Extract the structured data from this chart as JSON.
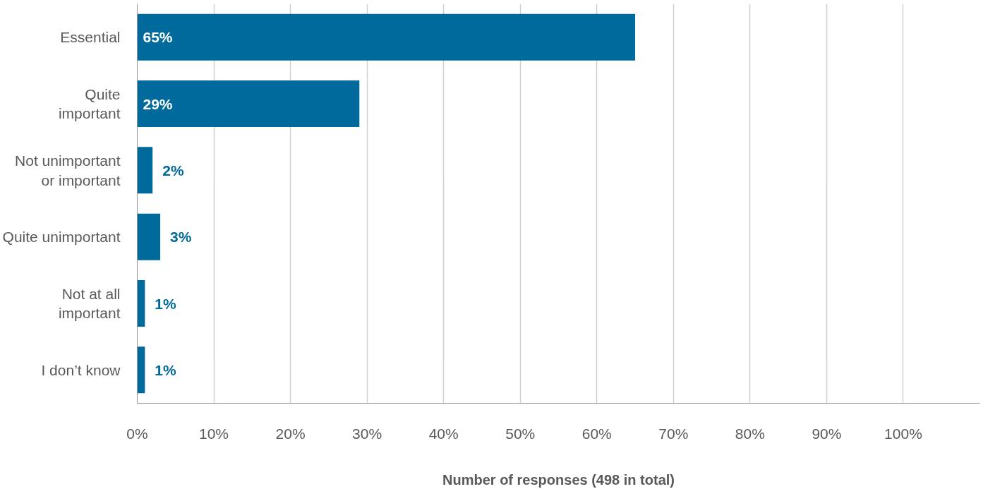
{
  "chart_data": {
    "type": "bar",
    "orientation": "horizontal",
    "categories": [
      "Essential",
      "Quite\nimportant",
      "Not unimportant\nor important",
      "Quite unimportant",
      "Not at all\nimportant",
      "I don’t know"
    ],
    "values": [
      65,
      29,
      2,
      3,
      1,
      1
    ],
    "value_labels": [
      "65%",
      "29%",
      "2%",
      "3%",
      "1%",
      "1%"
    ],
    "color": "#006a9c",
    "xlabel": "Number of responses (498 in total)",
    "xlim": [
      0,
      110
    ],
    "xticks": [
      {
        "value": 0,
        "label": "0%"
      },
      {
        "value": 10,
        "label": "10%"
      },
      {
        "value": 20,
        "label": "20%"
      },
      {
        "value": 30,
        "label": "30%"
      },
      {
        "value": 40,
        "label": "40%"
      },
      {
        "value": 50,
        "label": "50%"
      },
      {
        "value": 60,
        "label": "60%"
      },
      {
        "value": 70,
        "label": "70%"
      },
      {
        "value": 80,
        "label": "80%"
      },
      {
        "value": 90,
        "label": "90%"
      },
      {
        "value": 100,
        "label": "100%"
      }
    ],
    "grid": "x"
  }
}
